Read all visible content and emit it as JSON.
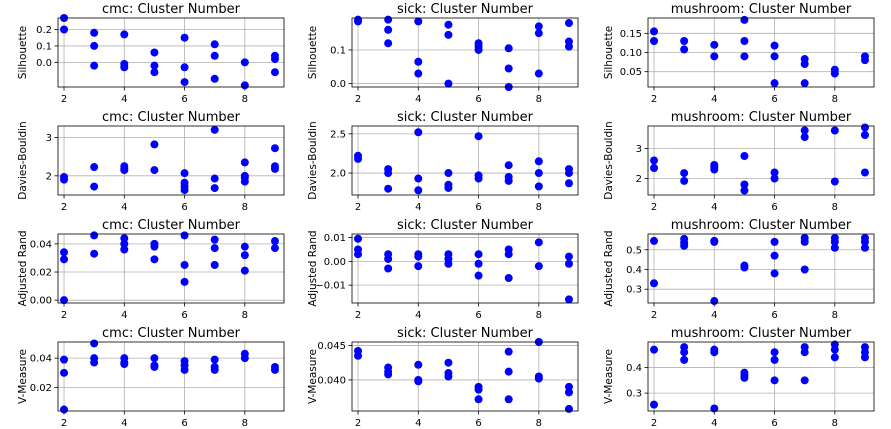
{
  "colors": {
    "marker": "#0000ff",
    "grid": "#b0b0b0"
  },
  "chart_data": [
    {
      "type": "scatter",
      "title": "cmc: Cluster Number",
      "ylabel": "Silhouette",
      "xlim": [
        1.8,
        9.3
      ],
      "ylim": [
        -0.15,
        0.27
      ],
      "xticks": [
        2,
        4,
        6,
        8
      ],
      "xtick_labels": [
        "2",
        "4",
        "6",
        "8"
      ],
      "yticks": [
        0.0,
        0.1,
        0.2
      ],
      "ytick_labels": [
        "0.0",
        "0.1",
        "0.2"
      ],
      "grid": true,
      "points": [
        [
          2,
          0.27
        ],
        [
          2,
          0.2
        ],
        [
          3,
          0.18
        ],
        [
          3,
          0.1
        ],
        [
          3,
          -0.02
        ],
        [
          4,
          0.17
        ],
        [
          4,
          -0.01
        ],
        [
          4,
          -0.03
        ],
        [
          5,
          0.06
        ],
        [
          5,
          -0.02
        ],
        [
          5,
          -0.06
        ],
        [
          6,
          0.15
        ],
        [
          6,
          -0.03
        ],
        [
          6,
          -0.12
        ],
        [
          7,
          0.11
        ],
        [
          7,
          0.04
        ],
        [
          7,
          -0.1
        ],
        [
          8,
          0.0
        ],
        [
          8,
          -0.14
        ],
        [
          9,
          0.04
        ],
        [
          9,
          0.02
        ],
        [
          9,
          -0.06
        ]
      ]
    },
    {
      "type": "scatter",
      "title": "sick: Cluster Number",
      "ylabel": "Silhouette",
      "xlim": [
        1.8,
        9.3
      ],
      "ylim": [
        -0.01,
        0.195
      ],
      "xticks": [
        2,
        4,
        6,
        8
      ],
      "xtick_labels": [
        "2",
        "4",
        "6",
        "8"
      ],
      "yticks": [
        0.0,
        0.1
      ],
      "ytick_labels": [
        "0.0",
        "0.1"
      ],
      "grid": true,
      "points": [
        [
          2,
          0.19
        ],
        [
          2,
          0.185
        ],
        [
          3,
          0.19
        ],
        [
          3,
          0.16
        ],
        [
          3,
          0.12
        ],
        [
          4,
          0.185
        ],
        [
          4,
          0.065
        ],
        [
          4,
          0.03
        ],
        [
          5,
          0.175
        ],
        [
          5,
          0.145
        ],
        [
          5,
          0.0
        ],
        [
          6,
          0.11
        ],
        [
          6,
          0.1
        ],
        [
          6,
          0.12
        ],
        [
          7,
          0.105
        ],
        [
          7,
          0.045
        ],
        [
          7,
          -0.01
        ],
        [
          8,
          0.17
        ],
        [
          8,
          0.15
        ],
        [
          8,
          0.03
        ],
        [
          9,
          0.18
        ],
        [
          9,
          0.125
        ],
        [
          9,
          0.11
        ]
      ]
    },
    {
      "type": "scatter",
      "title": "mushroom: Cluster Number",
      "ylabel": "Silhouette",
      "xlim": [
        1.8,
        9.3
      ],
      "ylim": [
        0.01,
        0.19
      ],
      "xticks": [
        2,
        4,
        6,
        8
      ],
      "xtick_labels": [
        "2",
        "4",
        "6",
        "8"
      ],
      "yticks": [
        0.05,
        0.1,
        0.15
      ],
      "ytick_labels": [
        "0.05",
        "0.10",
        "0.15"
      ],
      "grid": true,
      "points": [
        [
          2,
          0.155
        ],
        [
          2,
          0.13
        ],
        [
          3,
          0.13
        ],
        [
          3,
          0.108
        ],
        [
          4,
          0.12
        ],
        [
          4,
          0.09
        ],
        [
          5,
          0.185
        ],
        [
          5,
          0.13
        ],
        [
          5,
          0.09
        ],
        [
          6,
          0.118
        ],
        [
          6,
          0.09
        ],
        [
          6,
          0.02
        ],
        [
          7,
          0.083
        ],
        [
          7,
          0.07
        ],
        [
          7,
          0.02
        ],
        [
          8,
          0.055
        ],
        [
          8,
          0.045
        ],
        [
          9,
          0.09
        ],
        [
          9,
          0.08
        ]
      ]
    },
    {
      "type": "scatter",
      "title": "cmc: Cluster Number",
      "ylabel": "Davies-Bouldin",
      "xlim": [
        1.8,
        9.3
      ],
      "ylim": [
        1.5,
        3.3
      ],
      "xticks": [
        2,
        4,
        6,
        8
      ],
      "xtick_labels": [
        "2",
        "4",
        "6",
        "8"
      ],
      "yticks": [
        2,
        3
      ],
      "ytick_labels": [
        "2",
        "3"
      ],
      "grid": true,
      "points": [
        [
          2,
          1.97
        ],
        [
          2,
          1.9
        ],
        [
          3,
          2.23
        ],
        [
          3,
          1.72
        ],
        [
          4,
          2.25
        ],
        [
          4,
          2.18
        ],
        [
          4,
          2.15
        ],
        [
          5,
          2.82
        ],
        [
          5,
          2.15
        ],
        [
          6,
          2.07
        ],
        [
          6,
          1.82
        ],
        [
          6,
          1.72
        ],
        [
          6,
          1.63
        ],
        [
          7,
          3.2
        ],
        [
          7,
          1.93
        ],
        [
          7,
          1.68
        ],
        [
          8,
          2.35
        ],
        [
          8,
          2.0
        ],
        [
          8,
          1.95
        ],
        [
          8,
          1.85
        ],
        [
          9,
          2.72
        ],
        [
          9,
          2.25
        ],
        [
          9,
          2.18
        ]
      ]
    },
    {
      "type": "scatter",
      "title": "sick: Cluster Number",
      "ylabel": "Davies-Bouldin",
      "xlim": [
        1.8,
        9.3
      ],
      "ylim": [
        1.72,
        2.6
      ],
      "xticks": [
        2,
        4,
        6,
        8
      ],
      "xtick_labels": [
        "2",
        "4",
        "6",
        "8"
      ],
      "yticks": [
        2.0,
        2.5
      ],
      "ytick_labels": [
        "2.0",
        "2.5"
      ],
      "grid": true,
      "points": [
        [
          2,
          2.22
        ],
        [
          2,
          2.18
        ],
        [
          3,
          2.05
        ],
        [
          3,
          2.0
        ],
        [
          3,
          1.8
        ],
        [
          4,
          2.52
        ],
        [
          4,
          1.93
        ],
        [
          4,
          1.78
        ],
        [
          5,
          2.0
        ],
        [
          5,
          1.85
        ],
        [
          5,
          1.81
        ],
        [
          6,
          2.47
        ],
        [
          6,
          1.97
        ],
        [
          6,
          1.93
        ],
        [
          7,
          2.1
        ],
        [
          7,
          1.95
        ],
        [
          7,
          1.9
        ],
        [
          8,
          2.15
        ],
        [
          8,
          2.0
        ],
        [
          8,
          1.83
        ],
        [
          9,
          2.05
        ],
        [
          9,
          2.0
        ],
        [
          9,
          1.87
        ]
      ]
    },
    {
      "type": "scatter",
      "title": "mushroom: Cluster Number",
      "ylabel": "Davies-Bouldin",
      "xlim": [
        1.8,
        9.3
      ],
      "ylim": [
        1.45,
        3.75
      ],
      "xticks": [
        2,
        4,
        6,
        8
      ],
      "xtick_labels": [
        "2",
        "4",
        "6",
        "8"
      ],
      "yticks": [
        2,
        3
      ],
      "ytick_labels": [
        "2",
        "3"
      ],
      "grid": true,
      "points": [
        [
          2,
          2.6
        ],
        [
          2,
          2.35
        ],
        [
          3,
          2.18
        ],
        [
          3,
          1.92
        ],
        [
          4,
          2.45
        ],
        [
          4,
          2.38
        ],
        [
          4,
          2.3
        ],
        [
          5,
          2.75
        ],
        [
          5,
          1.8
        ],
        [
          5,
          1.6
        ],
        [
          6,
          2.2
        ],
        [
          6,
          2.0
        ],
        [
          7,
          3.6
        ],
        [
          7,
          3.38
        ],
        [
          8,
          3.6
        ],
        [
          8,
          1.9
        ],
        [
          9,
          3.7
        ],
        [
          9,
          3.45
        ],
        [
          9,
          2.2
        ]
      ]
    },
    {
      "type": "scatter",
      "title": "cmc: Cluster Number",
      "ylabel": "Adjusted Rand",
      "xlim": [
        1.8,
        9.3
      ],
      "ylim": [
        -0.002,
        0.047
      ],
      "xticks": [
        2,
        4,
        6,
        8
      ],
      "xtick_labels": [
        "2",
        "4",
        "6",
        "8"
      ],
      "yticks": [
        0.0,
        0.02,
        0.04
      ],
      "ytick_labels": [
        "0.00",
        "0.02",
        "0.04"
      ],
      "grid": true,
      "points": [
        [
          2,
          0.034
        ],
        [
          2,
          0.029
        ],
        [
          2,
          0.0
        ],
        [
          3,
          0.046
        ],
        [
          3,
          0.033
        ],
        [
          4,
          0.044
        ],
        [
          4,
          0.04
        ],
        [
          4,
          0.036
        ],
        [
          5,
          0.04
        ],
        [
          5,
          0.038
        ],
        [
          5,
          0.029
        ],
        [
          6,
          0.046
        ],
        [
          6,
          0.025
        ],
        [
          6,
          0.013
        ],
        [
          7,
          0.043
        ],
        [
          7,
          0.037
        ],
        [
          7,
          0.025
        ],
        [
          8,
          0.038
        ],
        [
          8,
          0.032
        ],
        [
          8,
          0.021
        ],
        [
          9,
          0.042
        ],
        [
          9,
          0.037
        ]
      ]
    },
    {
      "type": "scatter",
      "title": "sick: Cluster Number",
      "ylabel": "Adjusted Rand",
      "xlim": [
        1.8,
        9.3
      ],
      "ylim": [
        -0.0175,
        0.0115
      ],
      "xticks": [
        2,
        4,
        6,
        8
      ],
      "xtick_labels": [
        "2",
        "4",
        "6",
        "8"
      ],
      "yticks": [
        -0.01,
        0.0,
        0.01
      ],
      "ytick_labels": [
        "−0.01",
        "0.00",
        "0.01"
      ],
      "grid": true,
      "points": [
        [
          2,
          0.0095
        ],
        [
          2,
          0.005
        ],
        [
          2,
          0.003
        ],
        [
          3,
          0.003
        ],
        [
          3,
          0.001
        ],
        [
          3,
          -0.003
        ],
        [
          4,
          0.003
        ],
        [
          4,
          0.002
        ],
        [
          4,
          -0.002
        ],
        [
          5,
          0.003
        ],
        [
          5,
          0.001
        ],
        [
          5,
          -0.001
        ],
        [
          6,
          0.003
        ],
        [
          6,
          -0.001
        ],
        [
          6,
          -0.006
        ],
        [
          7,
          0.005
        ],
        [
          7,
          0.003
        ],
        [
          7,
          -0.007
        ],
        [
          8,
          0.008
        ],
        [
          8,
          -0.002
        ],
        [
          9,
          0.002
        ],
        [
          9,
          -0.001
        ],
        [
          9,
          -0.016
        ]
      ]
    },
    {
      "type": "scatter",
      "title": "mushroom: Cluster Number",
      "ylabel": "Adjusted Rand",
      "xlim": [
        1.8,
        9.3
      ],
      "ylim": [
        0.23,
        0.58
      ],
      "xticks": [
        2,
        4,
        6,
        8
      ],
      "xtick_labels": [
        "2",
        "4",
        "6",
        "8"
      ],
      "yticks": [
        0.3,
        0.4,
        0.5
      ],
      "ytick_labels": [
        "0.3",
        "0.4",
        "0.5"
      ],
      "grid": true,
      "points": [
        [
          2,
          0.545
        ],
        [
          2,
          0.33
        ],
        [
          3,
          0.555
        ],
        [
          3,
          0.535
        ],
        [
          3,
          0.52
        ],
        [
          4,
          0.545
        ],
        [
          4,
          0.54
        ],
        [
          4,
          0.24
        ],
        [
          5,
          0.42
        ],
        [
          5,
          0.41
        ],
        [
          6,
          0.54
        ],
        [
          6,
          0.47
        ],
        [
          6,
          0.38
        ],
        [
          7,
          0.56
        ],
        [
          7,
          0.54
        ],
        [
          7,
          0.4
        ],
        [
          8,
          0.56
        ],
        [
          8,
          0.54
        ],
        [
          8,
          0.51
        ],
        [
          9,
          0.56
        ],
        [
          9,
          0.54
        ],
        [
          9,
          0.51
        ]
      ]
    },
    {
      "type": "scatter",
      "title": "cmc: Cluster Number",
      "ylabel": "V-Measure",
      "xlim": [
        1.8,
        9.3
      ],
      "ylim": [
        0.004,
        0.051
      ],
      "xticks": [
        2,
        4,
        6,
        8
      ],
      "xtick_labels": [
        "2",
        "4",
        "6",
        "8"
      ],
      "yticks": [
        0.02,
        0.04
      ],
      "ytick_labels": [
        "0.02",
        "0.04"
      ],
      "grid": true,
      "points": [
        [
          2,
          0.039
        ],
        [
          2,
          0.03
        ],
        [
          2,
          0.005
        ],
        [
          3,
          0.05
        ],
        [
          3,
          0.04
        ],
        [
          3,
          0.037
        ],
        [
          4,
          0.04
        ],
        [
          4,
          0.037
        ],
        [
          4,
          0.036
        ],
        [
          5,
          0.04
        ],
        [
          5,
          0.035
        ],
        [
          5,
          0.034
        ],
        [
          6,
          0.038
        ],
        [
          6,
          0.035
        ],
        [
          6,
          0.032
        ],
        [
          7,
          0.039
        ],
        [
          7,
          0.034
        ],
        [
          7,
          0.032
        ],
        [
          8,
          0.043
        ],
        [
          8,
          0.04
        ],
        [
          9,
          0.034
        ],
        [
          9,
          0.032
        ]
      ]
    },
    {
      "type": "scatter",
      "title": "sick: Cluster Number",
      "ylabel": "V-Measure",
      "xlim": [
        1.8,
        9.3
      ],
      "ylim": [
        0.0355,
        0.0455
      ],
      "xticks": [
        2,
        4,
        6,
        8
      ],
      "xtick_labels": [
        "2",
        "4",
        "6",
        "8"
      ],
      "yticks": [
        0.04,
        0.045
      ],
      "ytick_labels": [
        "0.040",
        "0.045"
      ],
      "grid": true,
      "points": [
        [
          2,
          0.0442
        ],
        [
          2,
          0.0435
        ],
        [
          3,
          0.0418
        ],
        [
          3,
          0.0412
        ],
        [
          3,
          0.0408
        ],
        [
          4,
          0.0422
        ],
        [
          4,
          0.04
        ],
        [
          4,
          0.0398
        ],
        [
          5,
          0.0425
        ],
        [
          5,
          0.041
        ],
        [
          5,
          0.0405
        ],
        [
          6,
          0.039
        ],
        [
          6,
          0.0386
        ],
        [
          6,
          0.0372
        ],
        [
          7,
          0.0441
        ],
        [
          7,
          0.0412
        ],
        [
          7,
          0.0372
        ],
        [
          8,
          0.0455
        ],
        [
          8,
          0.0405
        ],
        [
          8,
          0.0402
        ],
        [
          9,
          0.039
        ],
        [
          9,
          0.0382
        ],
        [
          9,
          0.0358
        ]
      ]
    },
    {
      "type": "scatter",
      "title": "mushroom: Cluster Number",
      "ylabel": "V-Measure",
      "xlim": [
        1.8,
        9.3
      ],
      "ylim": [
        0.23,
        0.5
      ],
      "xticks": [
        2,
        4,
        6,
        8
      ],
      "xtick_labels": [
        "2",
        "4",
        "6",
        "8"
      ],
      "yticks": [
        0.3,
        0.4
      ],
      "ytick_labels": [
        "0.3",
        "0.4"
      ],
      "grid": true,
      "points": [
        [
          2,
          0.47
        ],
        [
          2,
          0.255
        ],
        [
          3,
          0.48
        ],
        [
          3,
          0.46
        ],
        [
          3,
          0.43
        ],
        [
          4,
          0.47
        ],
        [
          4,
          0.46
        ],
        [
          4,
          0.24
        ],
        [
          5,
          0.38
        ],
        [
          5,
          0.37
        ],
        [
          5,
          0.36
        ],
        [
          6,
          0.46
        ],
        [
          6,
          0.43
        ],
        [
          6,
          0.35
        ],
        [
          7,
          0.48
        ],
        [
          7,
          0.46
        ],
        [
          7,
          0.35
        ],
        [
          8,
          0.49
        ],
        [
          8,
          0.47
        ],
        [
          8,
          0.44
        ],
        [
          9,
          0.48
        ],
        [
          9,
          0.46
        ],
        [
          9,
          0.44
        ]
      ]
    }
  ]
}
